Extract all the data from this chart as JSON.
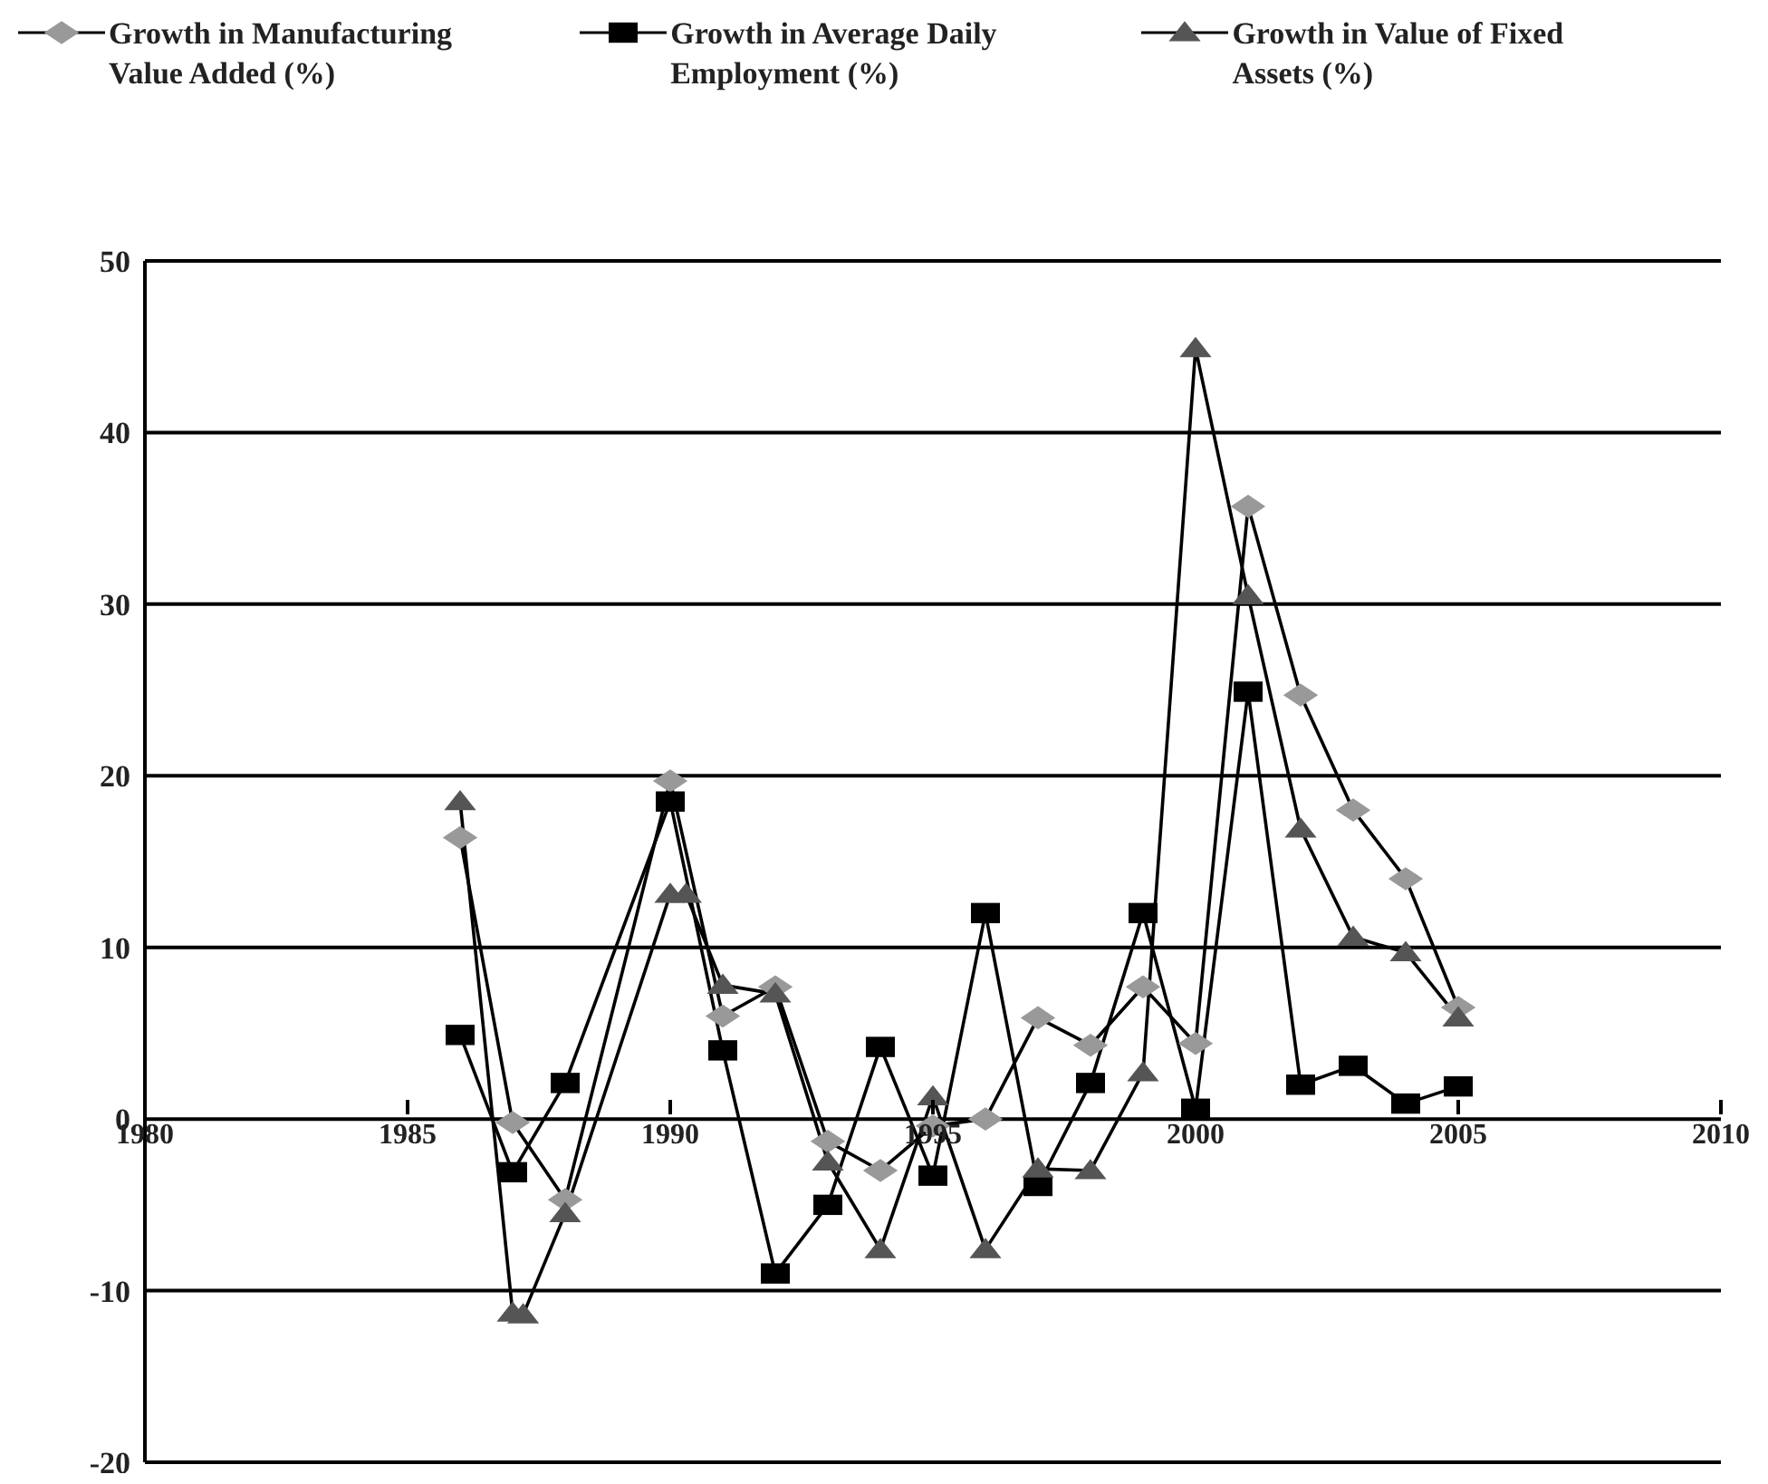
{
  "chart_data": {
    "type": "line",
    "x": [
      1986,
      1987,
      1988,
      1990,
      1991,
      1992,
      1993,
      1994,
      1995,
      1996,
      1997,
      1998,
      1999,
      2000,
      2001,
      2002,
      2003,
      2004,
      2005
    ],
    "series": [
      {
        "name": "Growth in Manufacturing Value Added (%)",
        "color": "#999999",
        "marker": "diamond",
        "values": [
          16.4,
          -0.2,
          -4.7,
          19.7,
          6.0,
          7.7,
          -1.3,
          -3.0,
          -0.4,
          0,
          5.9,
          4.3,
          7.7,
          4.4,
          35.7,
          24.7,
          18.0,
          14.0,
          6.5
        ]
      },
      {
        "name": "Growth in Average Daily Employment (%)",
        "color": "#000000",
        "marker": "square",
        "values": [
          4.9,
          -3.1,
          2.1,
          18.5,
          4.0,
          -9.0,
          -5.0,
          4.2,
          -3.3,
          12.0,
          -3.9,
          2.1,
          12.0,
          0.6,
          24.9,
          2.0,
          3.1,
          0.9,
          1.9
        ]
      },
      {
        "name": "Growth in Value of Fixed Assets (%)",
        "color": "#555555",
        "marker": "triangle",
        "x": [
          1986,
          1987,
          1987.2,
          1988,
          1990,
          1990.3,
          1991,
          1992,
          1993,
          1994,
          1995,
          1996,
          1997,
          1998,
          1999,
          2000,
          2001,
          2002,
          2003,
          2004,
          2005
        ],
        "values": [
          18.5,
          -11.3,
          -11.4,
          -5.5,
          13.1,
          13.1,
          7.8,
          7.3,
          -2.5,
          -7.6,
          1.3,
          -7.6,
          -2.9,
          -3.0,
          2.7,
          44.9,
          30.5,
          16.9,
          10.6,
          9.7,
          5.9
        ]
      }
    ],
    "xlim": [
      1980,
      2010
    ],
    "xticks": [
      1980,
      1985,
      1990,
      1995,
      2000,
      2005,
      2010
    ],
    "ylim": [
      -20,
      50
    ],
    "yticks": [
      -20,
      -10,
      0,
      10,
      20,
      30,
      40,
      50
    ],
    "grid": "y",
    "legend": "top",
    "line_style": "solid"
  }
}
